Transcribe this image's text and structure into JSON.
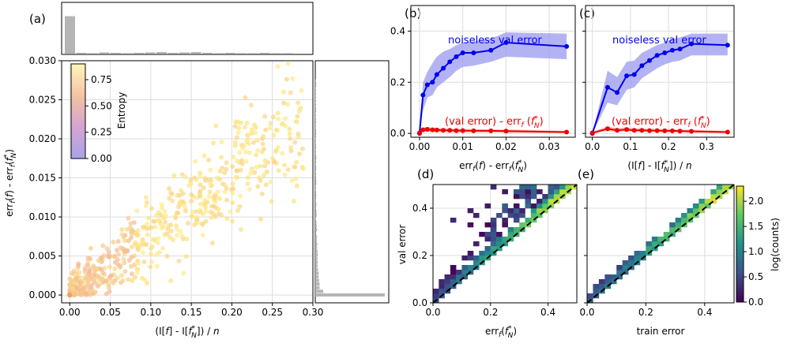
{
  "panel_labels": [
    "(a)",
    "(b)",
    "(c)",
    "(d)",
    "(e)"
  ],
  "chart_data": [
    {
      "id": "a",
      "type": "scatter",
      "xlabel": "(I[f] - I[f*_N]) / n",
      "ylabel": "err_f(f) - err_f(f*_N)",
      "xlim": [
        -0.01,
        0.3
      ],
      "ylim": [
        -0.001,
        0.03
      ],
      "xticks": [
        "0.00",
        "0.05",
        "0.10",
        "0.15",
        "0.20",
        "0.25",
        "0.30"
      ],
      "yticks": [
        "0.000",
        "0.005",
        "0.010",
        "0.015",
        "0.020",
        "0.025",
        "0.030"
      ],
      "colorbar": {
        "label": "Entropy",
        "ticks": [
          "0.00",
          "0.25",
          "0.50",
          "0.75"
        ],
        "range": [
          0,
          0.9
        ]
      },
      "trend": {
        "slope": 0.075,
        "n_points": 600,
        "note": "points follow roughly y = 0.075 x with spread"
      },
      "top_marginal": {
        "values": [
          0.95,
          0.02,
          0.01,
          0.03,
          0.02,
          0.01,
          0.02,
          0.03,
          0.04,
          0.02,
          0.03,
          0.04,
          0.02,
          0.01,
          0.02,
          0.01,
          0.01,
          0.02,
          0.01,
          0.01
        ]
      },
      "right_marginal": {
        "note": "distribution concentrated near 0 with long tail",
        "peak_value": 1.0
      }
    },
    {
      "id": "b",
      "type": "line",
      "xlabel": "err_f(f) - err_f(f*_N)",
      "xlim": [
        -0.002,
        0.036
      ],
      "ylim": [
        -0.015,
        0.5
      ],
      "xticks": [
        "0.00",
        "0.01",
        "0.02",
        "0.03"
      ],
      "yticks": [
        "0.0",
        "0.2",
        "0.4"
      ],
      "series": [
        {
          "name": "noiseless val error",
          "color": "#0000ee",
          "x": [
            0.0,
            0.0008,
            0.0018,
            0.003,
            0.004,
            0.0055,
            0.007,
            0.0085,
            0.01,
            0.0125,
            0.0165,
            0.02,
            0.034
          ],
          "y": [
            0.0,
            0.15,
            0.19,
            0.2,
            0.23,
            0.255,
            0.28,
            0.3,
            0.315,
            0.315,
            0.325,
            0.355,
            0.34
          ],
          "band_lo": [
            0.0,
            0.09,
            0.14,
            0.15,
            0.18,
            0.2,
            0.22,
            0.245,
            0.26,
            0.265,
            0.28,
            0.3,
            0.29
          ],
          "band_hi": [
            0.0,
            0.2,
            0.24,
            0.275,
            0.3,
            0.32,
            0.33,
            0.345,
            0.355,
            0.36,
            0.37,
            0.395,
            0.39
          ]
        },
        {
          "name": "(val error) - err_f(f*_N)",
          "color": "#ee0000",
          "x": [
            0.0,
            0.0008,
            0.0018,
            0.003,
            0.004,
            0.0055,
            0.007,
            0.0085,
            0.01,
            0.0125,
            0.0165,
            0.02,
            0.034
          ],
          "y": [
            0.002,
            0.014,
            0.016,
            0.014,
            0.013,
            0.012,
            0.012,
            0.011,
            0.011,
            0.01,
            0.01,
            0.009,
            0.005
          ],
          "band_lo": [
            0.0,
            0.006,
            0.007,
            0.006,
            0.005,
            0.005,
            0.005,
            0.004,
            0.004,
            0.004,
            0.004,
            0.003,
            0.001
          ],
          "band_hi": [
            0.005,
            0.022,
            0.025,
            0.022,
            0.021,
            0.02,
            0.019,
            0.018,
            0.018,
            0.017,
            0.016,
            0.015,
            0.01
          ]
        }
      ]
    },
    {
      "id": "c",
      "type": "line",
      "xlabel": "(I[f] - I[f*_N]) / n",
      "xlim": [
        -0.018,
        0.372
      ],
      "ylim": [
        -0.015,
        0.5
      ],
      "xticks": [
        "0.0",
        "0.1",
        "0.2",
        "0.3"
      ],
      "series": [
        {
          "name": "noiseless val error",
          "color": "#0000ee",
          "x": [
            0.0,
            0.04,
            0.065,
            0.09,
            0.11,
            0.13,
            0.15,
            0.17,
            0.19,
            0.21,
            0.23,
            0.26,
            0.355
          ],
          "y": [
            0.0,
            0.18,
            0.16,
            0.225,
            0.23,
            0.265,
            0.285,
            0.305,
            0.315,
            0.325,
            0.33,
            0.35,
            0.345
          ],
          "band_lo": [
            0.0,
            0.12,
            0.11,
            0.17,
            0.18,
            0.215,
            0.235,
            0.255,
            0.27,
            0.28,
            0.285,
            0.305,
            0.305
          ],
          "band_hi": [
            0.0,
            0.245,
            0.22,
            0.28,
            0.285,
            0.315,
            0.33,
            0.345,
            0.355,
            0.37,
            0.375,
            0.39,
            0.39
          ]
        },
        {
          "name": "(val error) - err_f(f*_N)",
          "color": "#ee0000",
          "x": [
            0.0,
            0.04,
            0.065,
            0.09,
            0.11,
            0.13,
            0.15,
            0.17,
            0.19,
            0.21,
            0.23,
            0.26,
            0.355
          ],
          "y": [
            0.002,
            0.018,
            0.012,
            0.015,
            0.012,
            0.012,
            0.011,
            0.011,
            0.01,
            0.01,
            0.009,
            0.008,
            0.005
          ],
          "band_lo": [
            0.0,
            0.01,
            0.005,
            0.008,
            0.006,
            0.006,
            0.005,
            0.005,
            0.004,
            0.004,
            0.004,
            0.003,
            0.001
          ],
          "band_hi": [
            0.005,
            0.027,
            0.02,
            0.023,
            0.02,
            0.019,
            0.018,
            0.018,
            0.017,
            0.016,
            0.015,
            0.014,
            0.01
          ]
        }
      ]
    },
    {
      "id": "d",
      "type": "heatmap",
      "xlabel": "err_f(f*_N)",
      "ylabel": "val error",
      "xlim": [
        0,
        0.5
      ],
      "ylim": [
        0,
        0.5
      ],
      "xticks": [
        "0.0",
        "0.2",
        "0.4"
      ],
      "yticks": [
        "0.0",
        "0.2",
        "0.4"
      ],
      "bins": 25,
      "diagonal": "y = x (dashed)",
      "note": "log counts concentrated near the diagonal; scattered low-count cells above it"
    },
    {
      "id": "e",
      "type": "heatmap",
      "xlabel": "train error",
      "xlim": [
        0,
        0.5
      ],
      "ylim": [
        0,
        0.5
      ],
      "xticks": [
        "0.0",
        "0.2",
        "0.4"
      ],
      "bins": 25,
      "diagonal": "y = x (dashed)",
      "colorbar": {
        "label": "log(counts)",
        "ticks": [
          "0.0",
          "0.5",
          "1.0",
          "1.5",
          "2.0"
        ],
        "range": [
          0,
          2.3
        ]
      },
      "note": "narrow band along the diagonal"
    }
  ],
  "legend_text": {
    "noiseless": "noiseless val error",
    "val_minus": "(val error) - err",
    "sub_f": "f",
    "paren_open": " (",
    "paren_close": ")",
    "f_letter": "f",
    "star": "*",
    "sub_n": "N"
  }
}
